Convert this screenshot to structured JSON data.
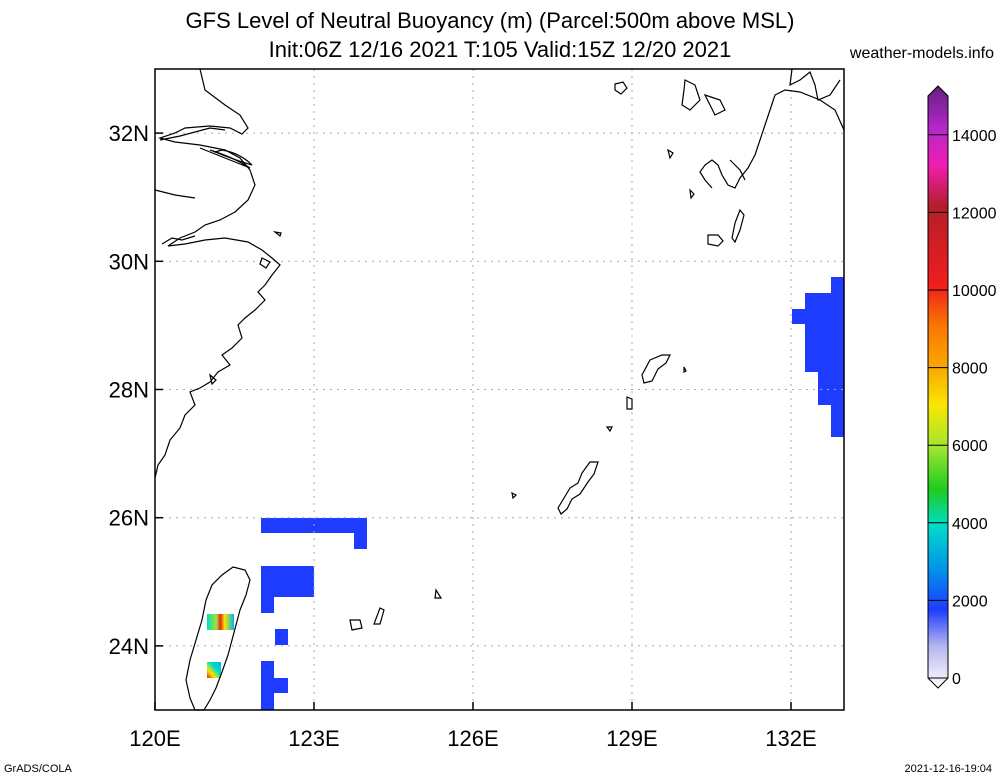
{
  "title": {
    "line1": "GFS Level of Neutral Buoyancy (m) (Parcel:500m above MSL)",
    "line2": "Init:06Z 12/16 2021 T:105 Valid:15Z 12/20 2021"
  },
  "credit": "weather-models.info",
  "footer": {
    "left": "GrADS/COLA",
    "right": "2021-12-16-19:04"
  },
  "axes": {
    "lon_range": [
      120,
      133
    ],
    "lat_range": [
      23,
      33
    ],
    "lon_ticks": [
      {
        "value": 120,
        "label": "120E"
      },
      {
        "value": 123,
        "label": "123E"
      },
      {
        "value": 126,
        "label": "126E"
      },
      {
        "value": 129,
        "label": "129E"
      },
      {
        "value": 132,
        "label": "132E"
      }
    ],
    "lat_ticks": [
      {
        "value": 24,
        "label": "24N"
      },
      {
        "value": 26,
        "label": "26N"
      },
      {
        "value": 28,
        "label": "28N"
      },
      {
        "value": 30,
        "label": "30N"
      },
      {
        "value": 32,
        "label": "32N"
      }
    ],
    "grid": true
  },
  "colorbar": {
    "labels": [
      "0",
      "2000",
      "4000",
      "6000",
      "8000",
      "10000",
      "12000",
      "14000"
    ],
    "min": 0,
    "max": 15000,
    "stops": [
      "#ffffff",
      "#c8c8f0",
      "#7878ff",
      "#1e3cff",
      "#0a78dc",
      "#00b4e6",
      "#00dcc8",
      "#00d264",
      "#3cc81e",
      "#a0e632",
      "#e6dc32",
      "#fab400",
      "#fa7800",
      "#f01e1e",
      "#b41e1e",
      "#c81e64",
      "#f014c8",
      "#b428c8",
      "#781e96",
      "#5a1e78"
    ]
  },
  "chart_data": {
    "type": "heatmap",
    "variable": "Level of Neutral Buoyancy (m)",
    "regions": [
      {
        "lon": [
          132.0,
          133.0
        ],
        "lat": [
          27.25,
          29.75
        ],
        "value_m": 1500
      },
      {
        "lon": [
          122.0,
          124.0
        ],
        "lat": [
          25.5,
          26.0
        ],
        "value_m": 1500
      },
      {
        "lon": [
          122.0,
          123.0
        ],
        "lat": [
          24.5,
          25.25
        ],
        "value_m": 1500
      },
      {
        "lon": [
          122.0,
          122.5
        ],
        "lat": [
          23.0,
          23.75
        ],
        "value_m": 1500
      },
      {
        "lon": [
          121.0,
          121.5
        ],
        "lat": [
          24.3,
          24.55
        ],
        "value_m": 5500
      },
      {
        "lon": [
          121.0,
          121.25
        ],
        "lat": [
          23.5,
          23.75
        ],
        "value_m": 4000
      }
    ]
  }
}
